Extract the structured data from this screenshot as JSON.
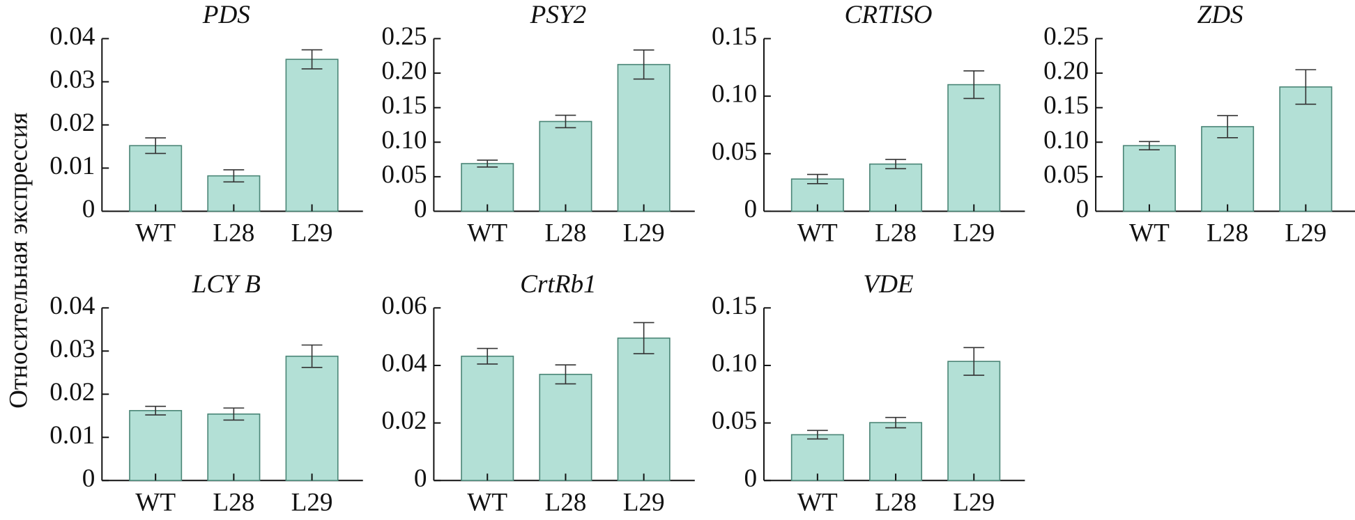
{
  "ylabel": "Относительная экспрессия",
  "chart_data": [
    {
      "type": "bar",
      "title": "PDS",
      "categories": [
        "WT",
        "L28",
        "L29"
      ],
      "values": [
        0.0152,
        0.0082,
        0.0352
      ],
      "errors": [
        0.0018,
        0.0014,
        0.0022
      ],
      "color": "#b3e0d6",
      "ylim": [
        0,
        0.04
      ],
      "yticks": [
        0,
        0.01,
        0.02,
        0.03,
        0.04
      ]
    },
    {
      "type": "bar",
      "title": "PSY2",
      "categories": [
        "WT",
        "L28",
        "L29"
      ],
      "values": [
        0.069,
        0.13,
        0.2125
      ],
      "errors": [
        0.005,
        0.009,
        0.021
      ],
      "color": "#b3e0d6",
      "ylim": [
        0,
        0.25
      ],
      "yticks": [
        0,
        0.05,
        {
          "value": 0.1,
          "label": "0.10"
        },
        0.15,
        {
          "value": 0.2,
          "label": "0.20"
        },
        0.25
      ]
    },
    {
      "type": "bar",
      "title": "CRTISO",
      "categories": [
        "WT",
        "L28",
        "L29"
      ],
      "values": [
        0.028,
        0.041,
        0.11
      ],
      "errors": [
        0.004,
        0.004,
        0.012
      ],
      "color": "#b3e0d6",
      "ylim": [
        0,
        0.15
      ],
      "yticks": [
        0,
        0.05,
        {
          "value": 0.1,
          "label": "0.10"
        },
        0.15
      ]
    },
    {
      "type": "bar",
      "title": "ZDS",
      "categories": [
        "WT",
        "L28",
        "L29"
      ],
      "values": [
        0.095,
        0.1225,
        0.18
      ],
      "errors": [
        0.006,
        0.016,
        0.025
      ],
      "color": "#b3e0d6",
      "ylim": [
        0,
        0.25
      ],
      "yticks": [
        0,
        0.05,
        {
          "value": 0.1,
          "label": "0.10"
        },
        0.15,
        {
          "value": 0.2,
          "label": "0.20"
        },
        0.25
      ]
    },
    {
      "type": "bar",
      "title": "LCY B",
      "categories": [
        "WT",
        "L28",
        "L29"
      ],
      "values": [
        0.0162,
        0.0154,
        0.0288
      ],
      "errors": [
        0.001,
        0.0014,
        0.0026
      ],
      "color": "#b3e0d6",
      "ylim": [
        0,
        0.04
      ],
      "yticks": [
        0,
        0.01,
        0.02,
        0.03,
        0.04
      ]
    },
    {
      "type": "bar",
      "title": "CrtRb1",
      "categories": [
        "WT",
        "L28",
        "L29"
      ],
      "values": [
        0.0432,
        0.0369,
        0.0495
      ],
      "errors": [
        0.0027,
        0.0033,
        0.0054
      ],
      "color": "#b3e0d6",
      "ylim": [
        0,
        0.06
      ],
      "yticks": [
        0,
        0.02,
        0.04,
        0.06
      ]
    },
    {
      "type": "bar",
      "title": "VDE",
      "categories": [
        "WT",
        "L28",
        "L29"
      ],
      "values": [
        0.0398,
        0.0503,
        0.1035
      ],
      "errors": [
        0.0037,
        0.0045,
        0.012
      ],
      "color": "#b3e0d6",
      "ylim": [
        0,
        0.15
      ],
      "yticks": [
        0,
        0.05,
        {
          "value": 0.1,
          "label": "0.10"
        },
        0.15
      ]
    }
  ]
}
